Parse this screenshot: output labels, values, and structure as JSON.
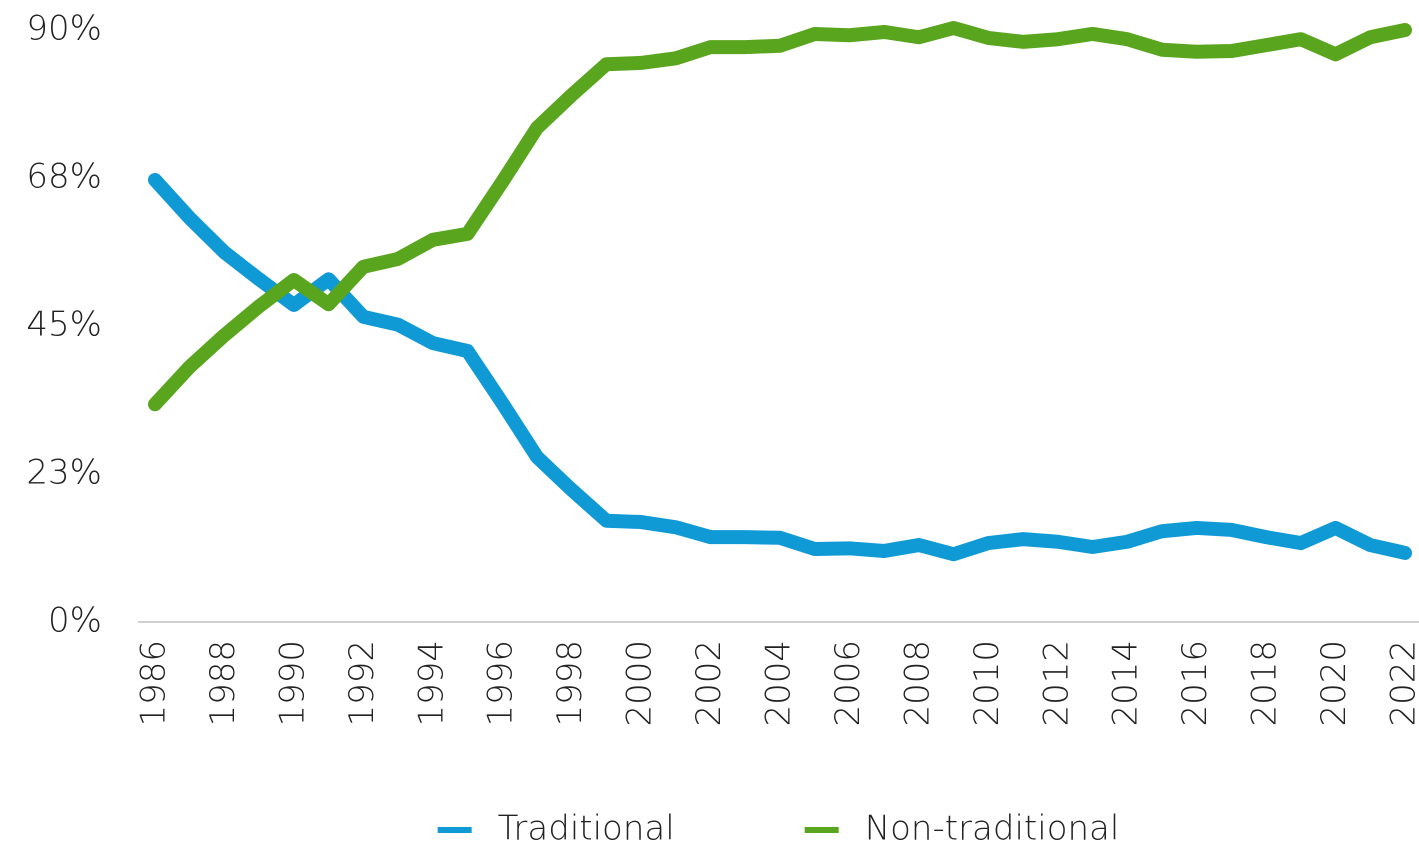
{
  "chart_data": {
    "type": "line",
    "x": [
      1986,
      1987,
      1988,
      1989,
      1990,
      1991,
      1992,
      1993,
      1994,
      1995,
      1996,
      1997,
      1998,
      1999,
      2000,
      2001,
      2002,
      2003,
      2004,
      2005,
      2006,
      2007,
      2008,
      2009,
      2010,
      2011,
      2012,
      2013,
      2014,
      2015,
      2016,
      2017,
      2018,
      2019,
      2020,
      2021,
      2022
    ],
    "series": [
      {
        "name": "Traditional",
        "color": "#0f9ad6",
        "values": [
          67.2,
          61.4,
          56.2,
          52.1,
          48.2,
          52.1,
          46.4,
          45.2,
          42.4,
          41.2,
          33.3,
          25.1,
          20.1,
          15.4,
          15.2,
          14.4,
          12.9,
          12.9,
          12.8,
          11.1,
          11.2,
          10.8,
          11.7,
          10.3,
          12.0,
          12.6,
          12.2,
          11.4,
          12.2,
          13.8,
          14.3,
          14.0,
          12.9,
          12.0,
          14.3,
          11.7,
          10.5
        ]
      },
      {
        "name": "Non-traditional",
        "color": "#5aa51e",
        "values": [
          33.1,
          38.8,
          43.6,
          48.0,
          52.0,
          48.3,
          54.0,
          55.2,
          58.1,
          59.0,
          66.9,
          75.1,
          80.1,
          84.8,
          85.0,
          85.7,
          87.4,
          87.4,
          87.6,
          89.4,
          89.2,
          89.7,
          88.9,
          90.3,
          88.8,
          88.2,
          88.6,
          89.4,
          88.6,
          87.0,
          86.7,
          86.8,
          87.7,
          88.6,
          86.3,
          88.9,
          90.0
        ]
      }
    ],
    "xlim": [
      1986,
      2022
    ],
    "xticks": [
      1986,
      1988,
      1990,
      1992,
      1994,
      1996,
      1998,
      2000,
      2002,
      2004,
      2006,
      2008,
      2010,
      2012,
      2014,
      2016,
      2018,
      2020,
      2022
    ],
    "ylim": [
      0,
      90
    ],
    "yticks": [
      {
        "value": 0,
        "label": "0%"
      },
      {
        "value": 22.5,
        "label": "23%"
      },
      {
        "value": 45,
        "label": "45%"
      },
      {
        "value": 67.5,
        "label": "68%"
      },
      {
        "value": 90,
        "label": "90%"
      }
    ],
    "grid": false,
    "legend": "bottom"
  }
}
